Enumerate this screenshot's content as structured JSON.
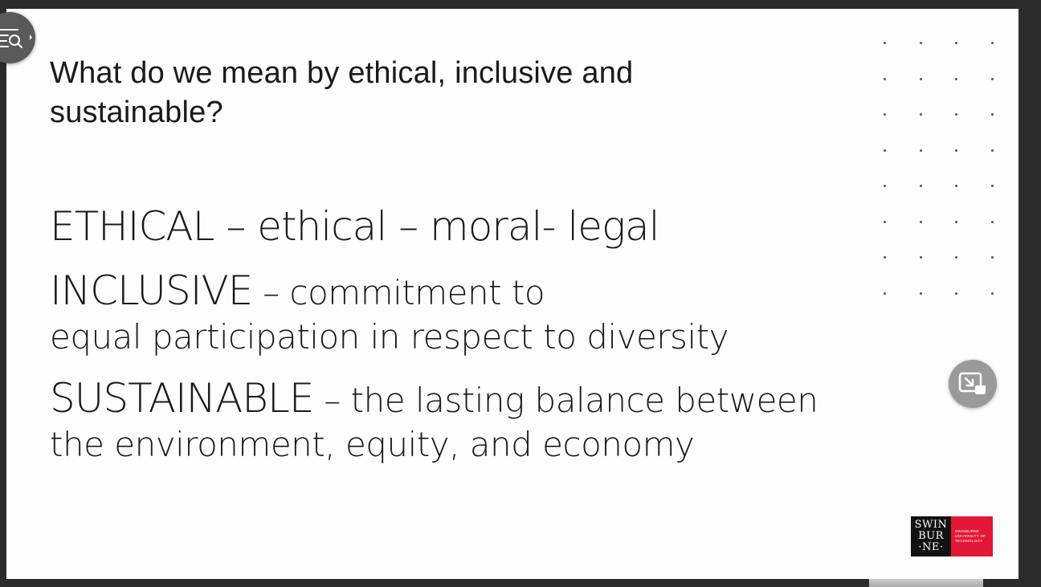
{
  "slide": {
    "heading_line1": "What do we mean by ethical, inclusive and",
    "heading_line2": "sustainable?",
    "ethical_line": "ETHICAL – ethical – moral- legal",
    "inclusive_term": "INCLUSIVE",
    "inclusive_def_part1": " – commitment to",
    "inclusive_def_part2": "equal participation in respect to diversity",
    "sustainable_term": "SUSTAINABLE",
    "sustainable_def_part1": " – the lasting balance between",
    "sustainable_def_part2": "the environment, equity, and economy",
    "logo": {
      "black_line1": "SWIN",
      "black_line2": "BUR",
      "black_line3": "·NE·",
      "red_line1": "SWINBURNE",
      "red_line2": "UNIVERSITY OF",
      "red_line3": "TECHNOLOGY",
      "red_color": "#e21836"
    }
  },
  "controls": {
    "menu_icon": "list-search-icon",
    "pip_icon": "picture-in-picture-icon"
  }
}
